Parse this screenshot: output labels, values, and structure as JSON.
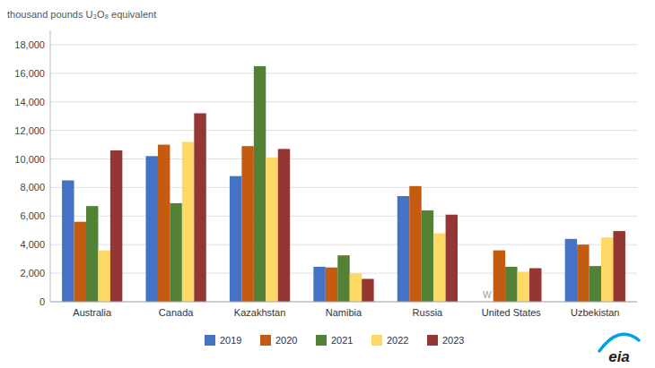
{
  "chart_data": {
    "type": "bar",
    "y_label": "thousand pounds U₃O₈ equivalent",
    "categories": [
      "Australia",
      "Canada",
      "Kazakhstan",
      "Namibia",
      "Russia",
      "United States",
      "Uzbekistan"
    ],
    "series": [
      {
        "name": "2019",
        "color": "#4472C4",
        "values": [
          8500,
          10200,
          8800,
          2450,
          7400,
          0,
          4400
        ]
      },
      {
        "name": "2020",
        "color": "#C55A11",
        "values": [
          5600,
          11000,
          10900,
          2400,
          8100,
          3600,
          4000
        ]
      },
      {
        "name": "2021",
        "color": "#538135",
        "values": [
          6700,
          6900,
          16500,
          3250,
          6400,
          2450,
          2500
        ]
      },
      {
        "name": "2022",
        "color": "#FFD966",
        "values": [
          3600,
          11200,
          10100,
          2000,
          4800,
          2100,
          4500
        ]
      },
      {
        "name": "2023",
        "color": "#943634",
        "values": [
          10600,
          13200,
          10700,
          1600,
          6100,
          2350,
          4950
        ]
      }
    ],
    "ylim": [
      0,
      19000
    ],
    "yticks": [
      0,
      {
        "value": 2000,
        "label": "2,000"
      },
      {
        "value": 4000,
        "label": "4,000"
      },
      {
        "value": 6000,
        "label": "6,000"
      },
      {
        "value": 8000,
        "label": "8,000"
      },
      {
        "value": 10000,
        "label": "10,000"
      },
      {
        "value": 12000,
        "label": "12,000"
      },
      {
        "value": 14000,
        "label": "14,000"
      },
      {
        "value": 16000,
        "label": "16,000"
      },
      {
        "value": 18000,
        "label": "18,000"
      }
    ],
    "grid": true,
    "legend": "bottom",
    "annotations": [
      {
        "text": "W",
        "category": "United States",
        "series": "2019",
        "y": 120
      },
      {
        "text": "eia"
      }
    ]
  }
}
